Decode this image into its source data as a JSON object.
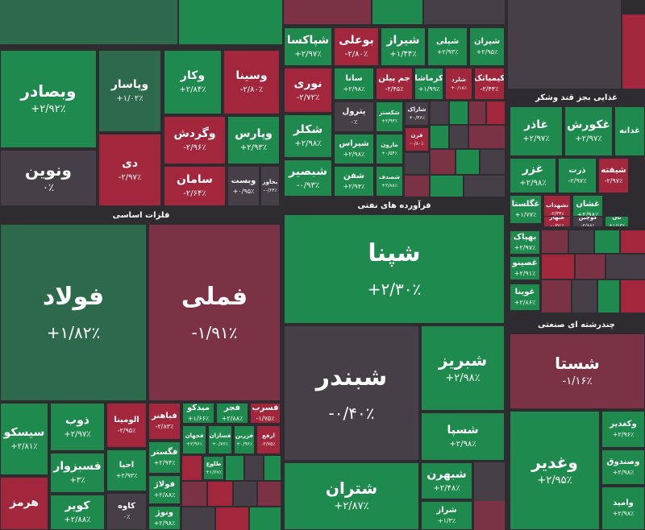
{
  "headers": [
    "فلزات اساسی",
    "فرآورده های نفتی",
    "غذایی بجز قند وشکر",
    "چندرشته ای صنعتی"
  ],
  "tiles": [
    {
      "name": "وبصادر",
      "change": "+۲/۹۲٪"
    },
    {
      "name": "وپاسار",
      "change": "+۱/۰۲٪"
    },
    {
      "name": "وکار",
      "change": "+۲/۸۴٪"
    },
    {
      "name": "وسینا",
      "change": "-۲/۸۰٪"
    },
    {
      "name": "ونوین",
      "change": "۰٪"
    },
    {
      "name": "دی",
      "change": "-۲/۹۷٪"
    },
    {
      "name": "وگردش",
      "change": "-۲/۹۶٪"
    },
    {
      "name": "وپارس",
      "change": "+۲/۹۳٪"
    },
    {
      "name": "سامان",
      "change": "-۲/۶۴٪"
    },
    {
      "name": "وبست",
      "change": "+۰/۹۵٪"
    },
    {
      "name": "بخاور",
      "change": "-۰/۶۳٪"
    },
    {
      "name": "فولاد",
      "change": "+۱/۸۲٪"
    },
    {
      "name": "فملی",
      "change": "-۱/۹۱٪"
    },
    {
      "name": "سیسکو",
      "change": "+۲/۸۱٪"
    },
    {
      "name": "ذوب",
      "change": "+۲/۹۷٪"
    },
    {
      "name": "فسبزوار",
      "change": "+۳٪"
    },
    {
      "name": "کویر",
      "change": "+۲/۸۸٪"
    },
    {
      "name": "هرمز"
    },
    {
      "name": "الومینا",
      "change": "-۲/۹۵٪"
    },
    {
      "name": "احیا",
      "change": "+۲/۹۳٪"
    },
    {
      "name": "کاوه",
      "change": "۰٪"
    },
    {
      "name": "فباهنر",
      "change": "-۲/۸۳٪"
    },
    {
      "name": "میدکو",
      "change": "+۱/۶۶٪"
    },
    {
      "name": "فجر",
      "change": "+۲/۸۸٪"
    },
    {
      "name": "فسرب",
      "change": "-۱/۷۵٪"
    },
    {
      "name": "فگستر",
      "change": "+۲/۹۴٪"
    },
    {
      "name": "فجهان",
      "change": "+۲/۹۶٪"
    },
    {
      "name": "فسازان",
      "change": "+۰/۷۶٪"
    },
    {
      "name": "فزرین",
      "change": "+۰/۹۶٪"
    },
    {
      "name": "ارفع",
      "change": "-۲/۷۵٪"
    },
    {
      "name": "فولاژ",
      "change": "+۲/۸۸٪"
    },
    {
      "name": "طلوع",
      "change": "+۱/۶۷٪"
    },
    {
      "name": "ونوژ",
      "change": "+۲/۹۸٪"
    },
    {
      "name": "شپاکسا",
      "change": "+۲/۹۷٪"
    },
    {
      "name": "بوعلی",
      "change": "-۲/۸۰٪"
    },
    {
      "name": "شیراز",
      "change": "+۱/۴۴٪"
    },
    {
      "name": "شپلی",
      "change": "+۲/۹۳٪"
    },
    {
      "name": "شیران",
      "change": "+۲/۹۵٪"
    },
    {
      "name": "نوری",
      "change": "-۲/۷۲٪"
    },
    {
      "name": "سانا",
      "change": "+۲/۹۸٪"
    },
    {
      "name": "جم پیلن",
      "change": "-۲/۴۵٪"
    },
    {
      "name": "کرماشا",
      "change": "+۱/۹۹٪"
    },
    {
      "name": "شلرد",
      "change": "+۰/۱۸٪"
    },
    {
      "name": "کیمیاتک",
      "change": "-۲/۴۴٪"
    },
    {
      "name": "شکلر",
      "change": "+۲/۹۸٪"
    },
    {
      "name": "شبصیر",
      "change": "-۰/۹۳٪"
    },
    {
      "name": "پترول",
      "change": "۰٪"
    },
    {
      "name": "شیراس",
      "change": "+۲/۹۸٪"
    },
    {
      "name": "شفن",
      "change": "+۲/۹۴٪"
    },
    {
      "name": "شکستر",
      "change": "+۲/۹۳٪"
    },
    {
      "name": "مارون",
      "change": "+۰/۵۴٪"
    },
    {
      "name": "شصدف",
      "change": "+۲/۸۸٪"
    },
    {
      "name": "شاراک",
      "change": "+۰/۴۶٪"
    },
    {
      "name": "قرن",
      "change": "-۰/۸۰٪"
    },
    {
      "name": "شپنا",
      "change": "+۲/۳۰٪"
    },
    {
      "name": "شبندر",
      "change": "-۰/۴۰٪"
    },
    {
      "name": "شبریز",
      "change": "+۲/۹۸٪"
    },
    {
      "name": "شسپا",
      "change": "+۲/۹۸٪"
    },
    {
      "name": "شتران",
      "change": "+۲/۸۷٪"
    },
    {
      "name": "شبهرن",
      "change": "+۲/۴۸٪"
    },
    {
      "name": "شراز",
      "change": "+۱/۳٪"
    },
    {
      "name": "غاذر",
      "change": "+۲/۹۷٪"
    },
    {
      "name": "غکورش",
      "change": "+۲/۹۷٪"
    },
    {
      "name": "غدانه"
    },
    {
      "name": "غزر",
      "change": "+۲/۹۸٪"
    },
    {
      "name": "ذرت",
      "change": "-۲/۹۷٪"
    },
    {
      "name": "شیفته",
      "change": "-۲/۹۷٪"
    },
    {
      "name": "غگلستا",
      "change": "+۱/۷۷٪"
    },
    {
      "name": "نشهداب",
      "change": "-۲/۳۴٪"
    },
    {
      "name": "غشان",
      "change": "+۲/۹۸٪"
    },
    {
      "name": "غبهار",
      "change": "-۰/۵۱٪"
    },
    {
      "name": "کوچین",
      "change": "-۲/۸۸٪"
    },
    {
      "name": "نان",
      "change": "+۱/۱۳٪"
    },
    {
      "name": "غمایه",
      "change": "+۲/۷۵٪"
    },
    {
      "name": "بهپاک",
      "change": "+۲/۹۷٪"
    },
    {
      "name": "غصینو",
      "change": "+۲/۹۱٪"
    },
    {
      "name": "غوینا",
      "change": "+۲/۸۶٪"
    },
    {
      "name": "شستا",
      "change": "-۱/۱۶٪"
    },
    {
      "name": "وغدیر",
      "change": "+۲/۹۵٪"
    },
    {
      "name": "وکغدیر",
      "change": "+۲/۹۶٪"
    },
    {
      "name": "وصندوق",
      "change": "+۲/۹۸٪"
    },
    {
      "name": "وامید",
      "change": "+۲/۹۸٪"
    }
  ]
}
